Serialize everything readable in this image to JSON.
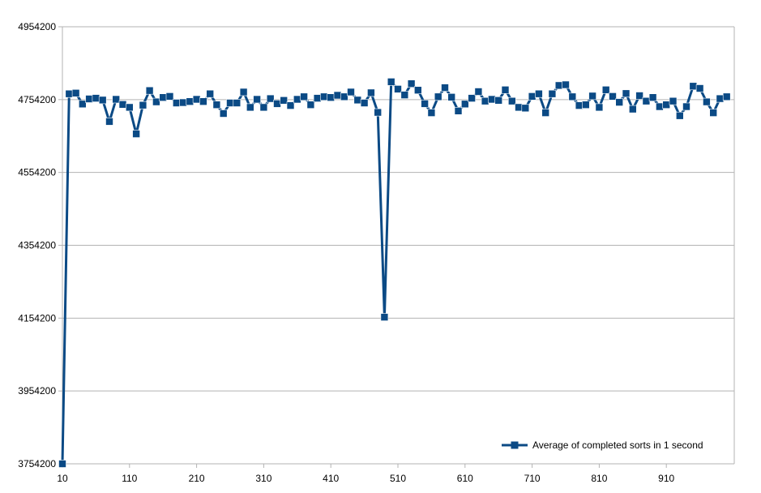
{
  "chart_data": {
    "type": "line",
    "title": "",
    "xlabel": "",
    "ylabel": "",
    "xlim": [
      10,
      1000
    ],
    "ylim": [
      3754200,
      4954200
    ],
    "x_ticks": [
      "10",
      "110",
      "210",
      "310",
      "410",
      "510",
      "610",
      "710",
      "810",
      "910"
    ],
    "y_ticks": [
      "4954200",
      "4754200",
      "4554200",
      "4354200",
      "4154200",
      "3954200",
      "3754200"
    ],
    "grid": "horizontal",
    "legend_position": "bottom-right",
    "series_color": "#0b4a85",
    "series": [
      {
        "name": "Average of completed sorts in 1 second",
        "x": [
          10,
          20,
          30,
          40,
          50,
          60,
          70,
          80,
          90,
          100,
          110,
          120,
          130,
          140,
          150,
          160,
          170,
          180,
          190,
          200,
          210,
          220,
          230,
          240,
          250,
          260,
          270,
          280,
          290,
          300,
          310,
          320,
          330,
          340,
          350,
          360,
          370,
          380,
          390,
          400,
          410,
          420,
          430,
          440,
          450,
          460,
          470,
          480,
          490,
          500,
          510,
          520,
          530,
          540,
          550,
          560,
          570,
          580,
          590,
          600,
          610,
          620,
          630,
          640,
          650,
          660,
          670,
          680,
          690,
          700,
          710,
          720,
          730,
          740,
          750,
          760,
          770,
          780,
          790,
          800,
          810,
          820,
          830,
          840,
          850,
          860,
          870,
          880,
          890,
          900,
          910,
          920,
          930,
          940,
          950,
          960,
          970,
          980,
          990,
          1000
        ],
        "values": [
          3754200,
          4770000,
          4772000,
          4742000,
          4756000,
          4758000,
          4753000,
          4694000,
          4755000,
          4741000,
          4733000,
          4660000,
          4739000,
          4779000,
          4748000,
          4760000,
          4763000,
          4745000,
          4746000,
          4749000,
          4755000,
          4749000,
          4770000,
          4740000,
          4716000,
          4745000,
          4745000,
          4775000,
          4733000,
          4755000,
          4733000,
          4757000,
          4743000,
          4752000,
          4738000,
          4755000,
          4762000,
          4740000,
          4758000,
          4762000,
          4760000,
          4766000,
          4762000,
          4775000,
          4753000,
          4745000,
          4773000,
          4719000,
          4157000,
          4803000,
          4783000,
          4767000,
          4798000,
          4780000,
          4743000,
          4718000,
          4762000,
          4787000,
          4761000,
          4723000,
          4742000,
          4758000,
          4776000,
          4750000,
          4755000,
          4752000,
          4781000,
          4750000,
          4733000,
          4731000,
          4763000,
          4770000,
          4718000,
          4770000,
          4793000,
          4795000,
          4762000,
          4738000,
          4740000,
          4764000,
          4733000,
          4781000,
          4763000,
          4747000,
          4771000,
          4728000,
          4765000,
          4750000,
          4760000,
          4735000,
          4740000,
          4750000,
          4710000,
          4735000,
          4791000,
          4785000,
          4748000,
          4718000,
          4757000,
          4762000
        ]
      }
    ]
  }
}
